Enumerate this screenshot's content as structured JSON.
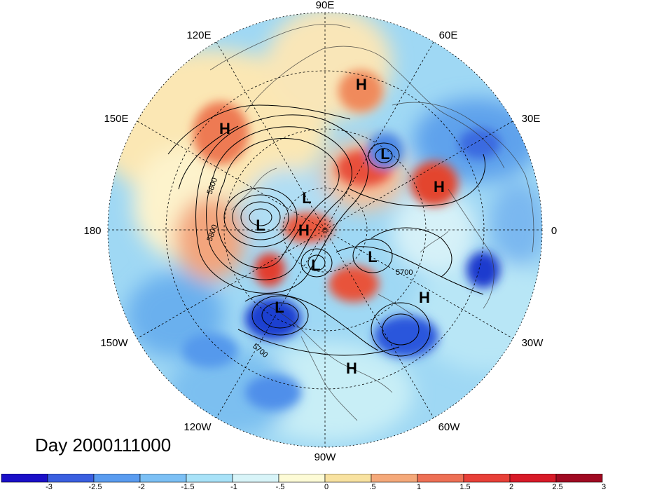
{
  "title": "Day 2000111000",
  "longitude_labels": [
    "90E",
    "60E",
    "30E",
    "0",
    "30W",
    "60W",
    "90W",
    "120W",
    "150W",
    "180",
    "150E",
    "120E"
  ],
  "contour_labels": [
    "5800",
    "5800",
    "5700",
    "5700"
  ],
  "pressure_centers": [
    {
      "label": "H"
    },
    {
      "label": "H"
    },
    {
      "label": "H"
    },
    {
      "label": "H"
    },
    {
      "label": "H"
    },
    {
      "label": "H"
    },
    {
      "label": "L"
    },
    {
      "label": "L"
    },
    {
      "label": "L"
    },
    {
      "label": "L"
    },
    {
      "label": "L"
    },
    {
      "label": "L"
    }
  ],
  "colorbar": {
    "tick_labels": [
      "-3",
      "-2.5",
      "-2",
      "-1.5",
      "-1",
      "-.5",
      "0",
      ".5",
      "1",
      "1.5",
      "2",
      "2.5",
      "3"
    ],
    "colors": [
      "#1a0fc8",
      "#3a5fe0",
      "#5a9cf0",
      "#7cc0f5",
      "#a8e2f8",
      "#d8f4f8",
      "#fdfbd6",
      "#f8e2a0",
      "#f5a97a",
      "#ee7055",
      "#e84038",
      "#d81a28",
      "#a00a22"
    ]
  },
  "palette": {
    "warm": "#f08050",
    "hot": "#e23d2e",
    "cold": "#3a6be0",
    "deep_cold": "#1a2fc8",
    "neutral": "#f9f1c8"
  }
}
